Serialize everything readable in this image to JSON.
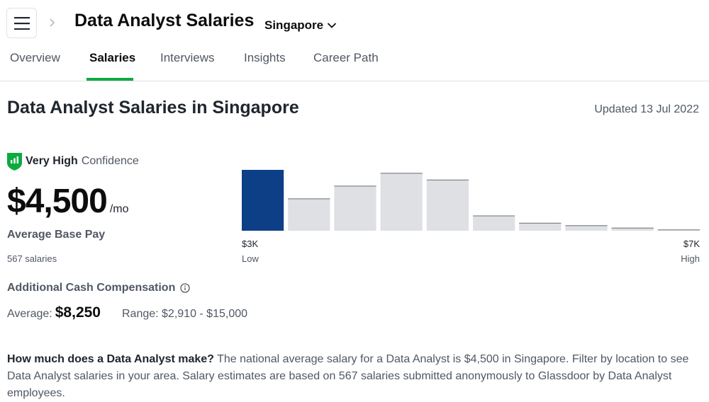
{
  "header": {
    "menu_icon": "hamburger-menu-icon",
    "breadcrumb_icon": "chevron-right-icon",
    "title": "Data Analyst Salaries",
    "location": "Singapore",
    "location_icon": "chevron-down-icon"
  },
  "tabs": [
    {
      "label": "Overview",
      "active": false
    },
    {
      "label": "Salaries",
      "active": true
    },
    {
      "label": "Interviews",
      "active": false
    },
    {
      "label": "Insights",
      "active": false
    },
    {
      "label": "Career Path",
      "active": false
    }
  ],
  "main": {
    "title": "Data Analyst Salaries in Singapore",
    "updated": "Updated 13 Jul 2022"
  },
  "confidence": {
    "icon": "confidence-shield-icon",
    "level": "Very High",
    "label": "Confidence"
  },
  "base_pay": {
    "value": "$4,500",
    "unit": "/mo",
    "label": "Average Base Pay",
    "count": "567 salaries"
  },
  "chart_data": {
    "type": "bar",
    "title": "",
    "xlabel": "",
    "ylabel": "",
    "bin_count": 10,
    "relative_heights": [
      1.0,
      0.53,
      0.74,
      0.95,
      0.84,
      0.25,
      0.13,
      0.09,
      0.05,
      0.02
    ],
    "highlighted_bin": 0,
    "low_value": "$3K",
    "low_label": "Low",
    "high_value": "$7K",
    "high_label": "High"
  },
  "additional_comp": {
    "title": "Additional Cash Compensation",
    "info_icon": "info-icon",
    "average_prefix": "Average:",
    "average_value": "$8,250",
    "range": "Range: $2,910 - $15,000"
  },
  "description": {
    "question": "How much does a Data Analyst make?",
    "body": " The national average salary for a Data Analyst is $4,500 in Singapore. Filter by location to see Data Analyst salaries in your area. Salary estimates are based on 567 salaries submitted anonymously to Glassdoor by Data Analyst employees."
  },
  "colors": {
    "accent": "#0caa41",
    "highlight_bar": "#0c3f86",
    "bar": "#dee0e3",
    "bar_top": "#6b7078"
  }
}
